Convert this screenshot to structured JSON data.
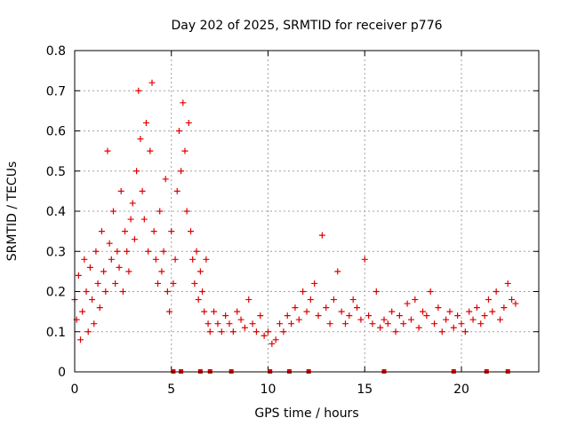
{
  "chart_data": {
    "type": "scatter",
    "title": "Day 202 of 2025, SRMTID for receiver p776",
    "xlabel": "GPS time / hours",
    "ylabel": "SRMTID / TECUs",
    "xlim": [
      0,
      24
    ],
    "ylim": [
      0,
      0.8
    ],
    "xticks": [
      0,
      5,
      10,
      15,
      20
    ],
    "yticks": [
      0,
      0.1,
      0.2,
      0.3,
      0.4,
      0.5,
      0.6,
      0.7,
      0.8
    ],
    "xtick_labels": [
      "0",
      "5",
      "10",
      "15",
      "20"
    ],
    "ytick_labels": [
      "0",
      "0.1",
      "0.2",
      "0.3",
      "0.4",
      "0.5",
      "0.6",
      "0.7",
      "0.8"
    ],
    "grid": true,
    "marker": "+",
    "color": "#e00000",
    "series": [
      {
        "name": "SRMTID",
        "x": [
          0.0,
          0.1,
          0.2,
          0.3,
          0.4,
          0.5,
          0.6,
          0.7,
          0.8,
          0.9,
          1.0,
          1.1,
          1.2,
          1.3,
          1.4,
          1.5,
          1.6,
          1.7,
          1.8,
          1.9,
          2.0,
          2.1,
          2.2,
          2.3,
          2.4,
          2.5,
          2.6,
          2.7,
          2.8,
          2.9,
          3.0,
          3.1,
          3.2,
          3.3,
          3.4,
          3.5,
          3.6,
          3.7,
          3.8,
          3.9,
          4.0,
          4.1,
          4.2,
          4.3,
          4.4,
          4.5,
          4.6,
          4.7,
          4.8,
          4.9,
          5.0,
          5.1,
          5.2,
          5.3,
          5.4,
          5.5,
          5.6,
          5.7,
          5.8,
          5.9,
          6.0,
          6.1,
          6.2,
          6.3,
          6.4,
          6.5,
          6.6,
          6.7,
          6.8,
          6.9,
          7.0,
          7.2,
          7.4,
          7.6,
          7.8,
          8.0,
          8.2,
          8.4,
          8.6,
          8.8,
          9.0,
          9.2,
          9.4,
          9.6,
          9.8,
          10.0,
          10.2,
          10.4,
          10.6,
          10.8,
          11.0,
          11.2,
          11.4,
          11.6,
          11.8,
          12.0,
          12.2,
          12.4,
          12.6,
          12.8,
          13.0,
          13.2,
          13.4,
          13.6,
          13.8,
          14.0,
          14.2,
          14.4,
          14.6,
          14.8,
          15.0,
          15.2,
          15.4,
          15.6,
          15.8,
          16.0,
          16.2,
          16.4,
          16.6,
          16.8,
          17.0,
          17.2,
          17.4,
          17.6,
          17.8,
          18.0,
          18.2,
          18.4,
          18.6,
          18.8,
          19.0,
          19.2,
          19.4,
          19.6,
          19.8,
          20.0,
          20.2,
          20.4,
          20.6,
          20.8,
          21.0,
          21.2,
          21.4,
          21.6,
          21.8,
          22.0,
          22.2,
          22.4,
          22.6,
          22.8
        ],
        "y": [
          0.18,
          0.13,
          0.24,
          0.08,
          0.15,
          0.28,
          0.2,
          0.1,
          0.26,
          0.18,
          0.12,
          0.3,
          0.22,
          0.16,
          0.35,
          0.25,
          0.2,
          0.55,
          0.32,
          0.28,
          0.4,
          0.22,
          0.3,
          0.26,
          0.45,
          0.2,
          0.35,
          0.3,
          0.25,
          0.38,
          0.42,
          0.33,
          0.5,
          0.7,
          0.58,
          0.45,
          0.38,
          0.62,
          0.3,
          0.55,
          0.72,
          0.35,
          0.28,
          0.22,
          0.4,
          0.25,
          0.3,
          0.48,
          0.2,
          0.15,
          0.35,
          0.22,
          0.28,
          0.45,
          0.6,
          0.5,
          0.67,
          0.55,
          0.4,
          0.62,
          0.35,
          0.28,
          0.22,
          0.3,
          0.18,
          0.25,
          0.2,
          0.15,
          0.28,
          0.12,
          0.1,
          0.15,
          0.12,
          0.1,
          0.14,
          0.12,
          0.1,
          0.15,
          0.13,
          0.11,
          0.18,
          0.12,
          0.1,
          0.14,
          0.09,
          0.1,
          0.07,
          0.08,
          0.12,
          0.1,
          0.14,
          0.12,
          0.16,
          0.13,
          0.2,
          0.15,
          0.18,
          0.22,
          0.14,
          0.34,
          0.16,
          0.12,
          0.18,
          0.25,
          0.15,
          0.12,
          0.14,
          0.18,
          0.16,
          0.13,
          0.28,
          0.14,
          0.12,
          0.2,
          0.11,
          0.13,
          0.12,
          0.15,
          0.1,
          0.14,
          0.12,
          0.17,
          0.13,
          0.18,
          0.11,
          0.15,
          0.14,
          0.2,
          0.12,
          0.16,
          0.1,
          0.13,
          0.15,
          0.11,
          0.14,
          0.12,
          0.1,
          0.15,
          0.13,
          0.16,
          0.12,
          0.14,
          0.18,
          0.15,
          0.2,
          0.13,
          0.16,
          0.22,
          0.18,
          0.17
        ]
      }
    ],
    "bottom_markers_x": [
      5.1,
      5.5,
      6.5,
      7.0,
      8.1,
      10.1,
      11.1,
      12.1,
      16.0,
      19.6,
      21.3,
      22.4
    ]
  }
}
